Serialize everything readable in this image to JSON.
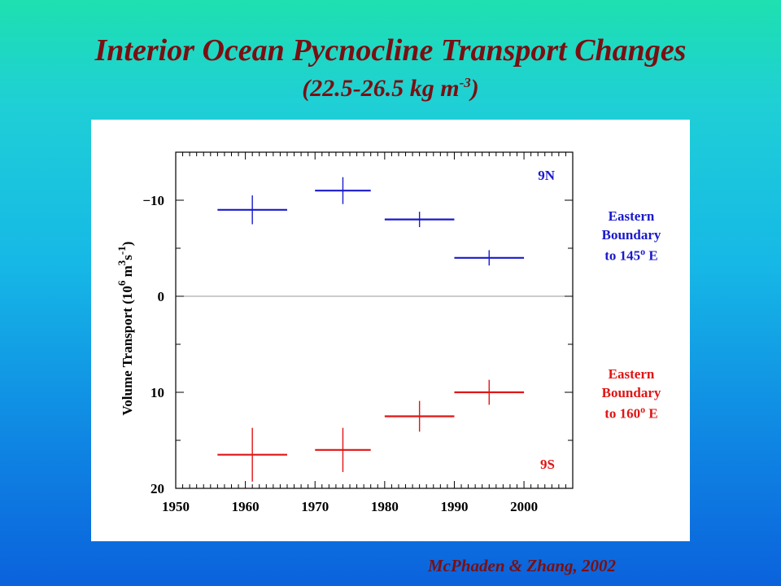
{
  "slide": {
    "title": "Interior Ocean Pycnocline Transport Changes",
    "subtitle_prefix": "(22.5-26.5 kg m",
    "subtitle_exp": "-3",
    "subtitle_suffix": ")",
    "credit": "McPhaden & Zhang, 2002"
  },
  "chart_data": {
    "type": "scatter",
    "style": "error-cross",
    "xlim": [
      1950,
      2007
    ],
    "ylim": [
      20,
      -15
    ],
    "y_inverted": true,
    "x_ticks": [
      "1950",
      "1960",
      "1970",
      "1980",
      "1990",
      "2000"
    ],
    "y_ticks": [
      "−10",
      "0",
      "10",
      "20"
    ],
    "ylabel": "Volume Transport (10",
    "ylabel_exp1": "6",
    "ylabel_mid": " m",
    "ylabel_exp2": "3",
    "ylabel_s": "s",
    "ylabel_exp3": "-1",
    "ylabel_end": ")",
    "zero_line": true,
    "series": [
      {
        "name": "9N",
        "color": "#1a1acc",
        "points": [
          {
            "x": 1961,
            "y": -9.0,
            "x_half": 5,
            "y_half": 1.5
          },
          {
            "x": 1974,
            "y": -11.0,
            "x_half": 4,
            "y_half": 1.4
          },
          {
            "x": 1985,
            "y": -8.0,
            "x_half": 5,
            "y_half": 0.8
          },
          {
            "x": 1995,
            "y": -4.0,
            "x_half": 5,
            "y_half": 0.8
          }
        ]
      },
      {
        "name": "9S",
        "color": "#e01515",
        "points": [
          {
            "x": 1961,
            "y": 16.5,
            "x_half": 5,
            "y_half": 2.8
          },
          {
            "x": 1974,
            "y": 16.0,
            "x_half": 4,
            "y_half": 2.3
          },
          {
            "x": 1985,
            "y": 12.5,
            "x_half": 5,
            "y_half": 1.6
          },
          {
            "x": 1995,
            "y": 10.0,
            "x_half": 5,
            "y_half": 1.3
          }
        ]
      }
    ],
    "annotations": {
      "north": {
        "line1": "Eastern",
        "line2": "Boundary",
        "line3": "to 145",
        "sup": "o",
        "end": " E",
        "color": "#1a1acc"
      },
      "south": {
        "line1": "Eastern",
        "line2": "Boundary",
        "line3": "to 160",
        "sup": "o",
        "end": " E",
        "color": "#e01515"
      }
    }
  }
}
